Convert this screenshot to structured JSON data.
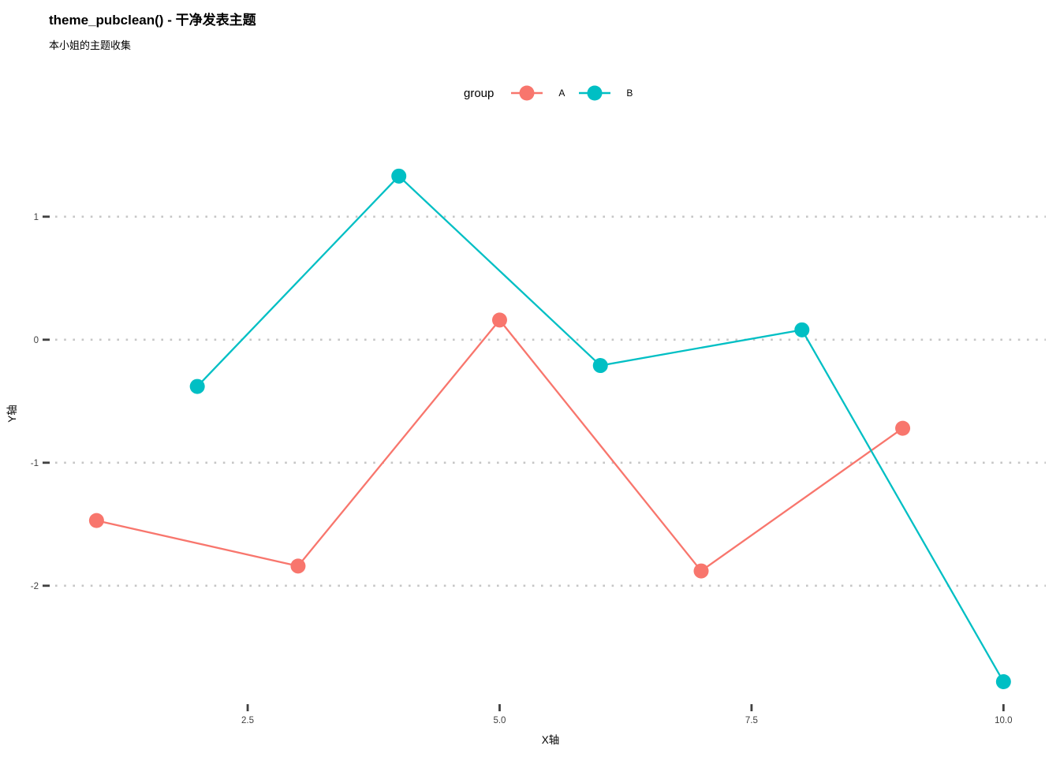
{
  "page": {
    "background": "#ffffff"
  },
  "header": {
    "title": "theme_pubclean() - 干净发表主题",
    "subtitle": "本小姐的主题收集"
  },
  "legend": {
    "title": "group",
    "position": "top",
    "items": [
      {
        "label": "A",
        "color": "#F8766D"
      },
      {
        "label": "B",
        "color": "#00BFC4"
      }
    ]
  },
  "axes": {
    "x_title": "X轴",
    "y_title": "Y轴"
  },
  "chart_data": {
    "type": "line",
    "title": "theme_pubclean() - 干净发表主题",
    "subtitle": "本小姐的主题收集",
    "xlabel": "X轴",
    "ylabel": "Y轴",
    "legend_title": "group",
    "legend_position": "top",
    "grid": "horizontal dotted major gridlines only, no panel border, no axis lines",
    "grid_color": "#C6C6C6",
    "tick_color": "#404040",
    "tick_label_color": "#404040",
    "x_ticks": [
      2.5,
      5.0,
      7.5,
      10.0
    ],
    "x_tick_labels": [
      "2.5",
      "5.0",
      "7.5",
      "10.0"
    ],
    "y_ticks": [
      1,
      0,
      -1,
      -2
    ],
    "y_tick_labels": [
      "1",
      "0",
      "-1",
      "-2"
    ],
    "xlim": [
      0.59,
      10.42
    ],
    "ylim": [
      -2.95,
      1.8
    ],
    "marker_radius": 9.5,
    "line_width": 2.3,
    "series": [
      {
        "name": "A",
        "color": "#F8766D",
        "x": [
          1,
          3,
          5,
          7,
          9
        ],
        "y": [
          -1.47,
          -1.84,
          0.16,
          -1.88,
          -0.72
        ]
      },
      {
        "name": "B",
        "color": "#00BFC4",
        "x": [
          2,
          4,
          6,
          8,
          10
        ],
        "y": [
          -0.38,
          1.33,
          -0.21,
          0.08,
          -2.78
        ]
      }
    ]
  }
}
